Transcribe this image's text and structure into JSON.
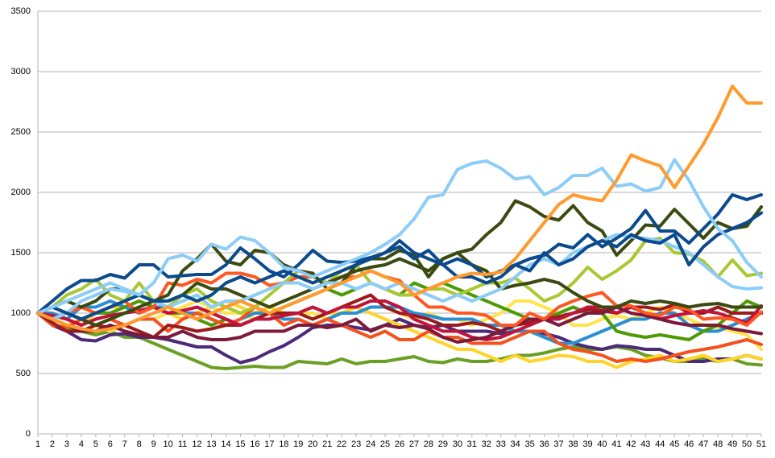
{
  "chart_data": {
    "type": "line",
    "grid": true,
    "categories": [
      "1",
      "2",
      "3",
      "4",
      "5",
      "6",
      "7",
      "8",
      "9",
      "10",
      "11",
      "12",
      "13",
      "14",
      "15",
      "16",
      "17",
      "18",
      "19",
      "20",
      "21",
      "22",
      "23",
      "24",
      "25",
      "26",
      "27",
      "28",
      "29",
      "30",
      "31",
      "32",
      "33",
      "34",
      "35",
      "36",
      "37",
      "38",
      "39",
      "40",
      "41",
      "42",
      "43",
      "44",
      "45",
      "46",
      "47",
      "48",
      "49",
      "50",
      "51"
    ],
    "ylim": [
      0,
      3500
    ],
    "yticks": [
      0,
      500,
      1000,
      1500,
      2000,
      2500,
      3000,
      3500
    ],
    "series": [
      {
        "color": "#6a9f24",
        "values": [
          1000,
          900,
          880,
          850,
          820,
          850,
          800,
          800,
          750,
          700,
          650,
          600,
          550,
          540,
          550,
          560,
          550,
          550,
          600,
          590,
          580,
          620,
          580,
          600,
          600,
          620,
          640,
          600,
          590,
          620,
          600,
          600,
          620,
          650,
          650,
          670,
          700,
          720,
          700,
          700,
          720,
          700,
          650,
          630,
          600,
          600,
          620,
          600,
          620,
          580,
          570
        ]
      },
      {
        "color": "#4c2a78",
        "values": [
          1000,
          900,
          850,
          780,
          770,
          820,
          830,
          800,
          800,
          780,
          750,
          720,
          720,
          650,
          590,
          620,
          680,
          730,
          800,
          880,
          900,
          900,
          880,
          860,
          900,
          950,
          900,
          880,
          900,
          850,
          850,
          850,
          830,
          850,
          850,
          830,
          800,
          750,
          720,
          700,
          730,
          720,
          700,
          700,
          650,
          600,
          600,
          620,
          620,
          650,
          620
        ]
      },
      {
        "color": "#ffd42a",
        "values": [
          1000,
          1000,
          950,
          900,
          1000,
          1050,
          1050,
          1100,
          1050,
          1000,
          950,
          1000,
          1050,
          1100,
          1050,
          1000,
          1050,
          1000,
          1000,
          950,
          1000,
          1000,
          1050,
          1000,
          950,
          900,
          850,
          800,
          750,
          700,
          700,
          650,
          600,
          650,
          600,
          620,
          650,
          640,
          600,
          600,
          550,
          600,
          620,
          650,
          600,
          620,
          650,
          600,
          620,
          650,
          620
        ]
      },
      {
        "color": "#ffe44d",
        "values": [
          1000,
          950,
          900,
          950,
          900,
          850,
          900,
          950,
          950,
          1000,
          1050,
          1100,
          1050,
          1000,
          1000,
          950,
          950,
          1000,
          1000,
          1000,
          950,
          1000,
          1000,
          1050,
          1050,
          1000,
          950,
          1000,
          950,
          950,
          900,
          950,
          1000,
          1100,
          1100,
          1050,
          1000,
          900,
          900,
          950,
          980,
          950,
          1000,
          1050,
          1000,
          950,
          900,
          880,
          850,
          820,
          700
        ]
      },
      {
        "color": "#2a8fd1",
        "values": [
          1000,
          1000,
          950,
          1050,
          1050,
          1100,
          1050,
          1000,
          1050,
          1050,
          1000,
          1000,
          950,
          900,
          950,
          1000,
          1000,
          950,
          950,
          900,
          950,
          1000,
          1000,
          1050,
          1050,
          1050,
          1000,
          980,
          950,
          950,
          950,
          900,
          900,
          850,
          850,
          800,
          750,
          750,
          800,
          850,
          900,
          950,
          950,
          1000,
          1000,
          900,
          850,
          850,
          900,
          950,
          1000
        ]
      },
      {
        "color": "#4e9a06",
        "values": [
          1000,
          1050,
          1000,
          1050,
          1000,
          1000,
          1050,
          1100,
          1050,
          1000,
          1000,
          950,
          900,
          950,
          900,
          950,
          1000,
          1050,
          1100,
          1150,
          1200,
          1150,
          1200,
          1250,
          1200,
          1150,
          1250,
          1200,
          1250,
          1200,
          1150,
          1100,
          1050,
          1000,
          950,
          950,
          1000,
          1050,
          1000,
          1000,
          850,
          820,
          800,
          820,
          800,
          780,
          850,
          900,
          1000,
          1100,
          1050
        ]
      },
      {
        "color": "#f4511e",
        "values": [
          1000,
          900,
          880,
          950,
          900,
          950,
          900,
          950,
          950,
          850,
          950,
          1000,
          950,
          900,
          950,
          1050,
          1000,
          900,
          950,
          900,
          950,
          900,
          850,
          800,
          850,
          780,
          780,
          850,
          800,
          800,
          750,
          750,
          750,
          800,
          850,
          850,
          750,
          700,
          680,
          650,
          600,
          620,
          600,
          620,
          650,
          680,
          700,
          720,
          750,
          780,
          740
        ]
      },
      {
        "color": "#9b1b1b",
        "values": [
          1000,
          920,
          850,
          850,
          900,
          880,
          900,
          850,
          800,
          900,
          880,
          850,
          870,
          900,
          900,
          950,
          1000,
          1000,
          1000,
          950,
          1000,
          1050,
          1100,
          1150,
          1050,
          1000,
          980,
          950,
          900,
          900,
          920,
          900,
          850,
          900,
          920,
          950,
          970,
          1000,
          1030,
          1020,
          1000,
          1050,
          1050,
          1030,
          1070,
          1000,
          1000,
          1050,
          1000,
          1000,
          1000
        ]
      },
      {
        "color": "#c0143c",
        "values": [
          1000,
          980,
          950,
          900,
          950,
          980,
          1000,
          1020,
          1050,
          1000,
          1020,
          1050,
          1000,
          950,
          900,
          950,
          950,
          980,
          1000,
          1050,
          1000,
          1050,
          1050,
          1100,
          1100,
          1050,
          950,
          900,
          850,
          850,
          800,
          780,
          800,
          850,
          900,
          950,
          950,
          1000,
          1050,
          1050,
          1000,
          1050,
          1000,
          950,
          980,
          1000,
          1020,
          1000,
          960,
          920,
          1060
        ]
      },
      {
        "color": "#7b1a3a",
        "values": [
          1000,
          950,
          900,
          850,
          850,
          900,
          850,
          820,
          800,
          800,
          850,
          800,
          780,
          780,
          800,
          850,
          850,
          850,
          900,
          900,
          880,
          900,
          950,
          850,
          900,
          880,
          900,
          870,
          800,
          760,
          780,
          800,
          850,
          900,
          950,
          950,
          900,
          950,
          1000,
          1000,
          1050,
          1000,
          980,
          950,
          920,
          900,
          900,
          900,
          870,
          850,
          830
        ]
      },
      {
        "color": "#ff5722",
        "values": [
          1000,
          950,
          1000,
          1050,
          1000,
          1050,
          1100,
          1000,
          1050,
          1250,
          1230,
          1280,
          1250,
          1330,
          1330,
          1300,
          1230,
          1250,
          1300,
          1300,
          1250,
          1300,
          1300,
          1350,
          1300,
          1270,
          1150,
          1050,
          1050,
          1000,
          1000,
          980,
          900,
          900,
          1000,
          950,
          1050,
          1100,
          1140,
          1170,
          1060,
          1060,
          1000,
          980,
          1050,
          1030,
          950,
          960,
          950,
          900,
          1010
        ]
      },
      {
        "color": "#a8c832",
        "values": [
          1000,
          1050,
          1150,
          1200,
          1280,
          1150,
          1100,
          1250,
          1100,
          1050,
          1150,
          1200,
          1100,
          1050,
          1000,
          1050,
          1150,
          1250,
          1350,
          1300,
          1250,
          1350,
          1400,
          1250,
          1200,
          1150,
          1150,
          1200,
          1200,
          1150,
          1200,
          1250,
          1250,
          1290,
          1200,
          1100,
          1150,
          1250,
          1380,
          1280,
          1350,
          1440,
          1600,
          1620,
          1500,
          1490,
          1430,
          1300,
          1440,
          1310,
          1330
        ]
      },
      {
        "color": "#3a4a10",
        "values": [
          1000,
          1050,
          1100,
          1050,
          1100,
          1200,
          1200,
          1150,
          1100,
          1150,
          1350,
          1450,
          1570,
          1430,
          1400,
          1520,
          1500,
          1400,
          1350,
          1330,
          1200,
          1250,
          1400,
          1450,
          1450,
          1520,
          1480,
          1300,
          1450,
          1500,
          1400,
          1350,
          1200,
          1230,
          1250,
          1280,
          1250,
          1170,
          1100,
          1050,
          1050,
          1100,
          1080,
          1100,
          1080,
          1050,
          1070,
          1080,
          1050,
          1050,
          1050
        ]
      },
      {
        "color": "#3a4a10",
        "values": [
          1000,
          950,
          1000,
          950,
          900,
          950,
          1000,
          1050,
          1100,
          1100,
          1150,
          1250,
          1200,
          1200,
          1150,
          1100,
          1050,
          1100,
          1150,
          1200,
          1250,
          1300,
          1350,
          1380,
          1400,
          1450,
          1400,
          1350,
          1450,
          1500,
          1530,
          1650,
          1750,
          1930,
          1880,
          1800,
          1770,
          1890,
          1750,
          1680,
          1480,
          1600,
          1730,
          1720,
          1860,
          1740,
          1620,
          1750,
          1700,
          1720,
          1880
        ]
      },
      {
        "color": "#8ccdf7",
        "values": [
          1000,
          950,
          1000,
          1100,
          1150,
          1200,
          1180,
          1150,
          1100,
          1050,
          1100,
          1150,
          1050,
          1100,
          1100,
          1150,
          1200,
          1250,
          1250,
          1200,
          1250,
          1250,
          1200,
          1250,
          1200,
          1250,
          1200,
          1150,
          1100,
          1150,
          1100,
          1150,
          1200,
          1300,
          1400,
          1450,
          1400,
          1500,
          1550,
          1600,
          1650,
          1630,
          1620,
          1600,
          1550,
          1500,
          1400,
          1300,
          1220,
          1200,
          1210
        ]
      },
      {
        "color": "#0b4a8c",
        "values": [
          1000,
          1050,
          1000,
          950,
          1000,
          1050,
          1100,
          1150,
          1100,
          1100,
          1150,
          1100,
          1150,
          1250,
          1300,
          1250,
          1300,
          1350,
          1300,
          1250,
          1300,
          1350,
          1400,
          1450,
          1500,
          1600,
          1500,
          1450,
          1400,
          1450,
          1400,
          1300,
          1350,
          1400,
          1350,
          1500,
          1400,
          1450,
          1550,
          1600,
          1550,
          1650,
          1600,
          1580,
          1650,
          1400,
          1550,
          1650,
          1700,
          1750,
          1830
        ]
      },
      {
        "color": "#0b4a8c",
        "values": [
          1000,
          1100,
          1200,
          1270,
          1270,
          1320,
          1290,
          1400,
          1400,
          1300,
          1310,
          1320,
          1320,
          1400,
          1540,
          1450,
          1350,
          1300,
          1400,
          1520,
          1430,
          1420,
          1430,
          1460,
          1500,
          1550,
          1450,
          1520,
          1400,
          1300,
          1300,
          1250,
          1300,
          1400,
          1450,
          1480,
          1570,
          1540,
          1650,
          1550,
          1620,
          1700,
          1850,
          1680,
          1680,
          1580,
          1700,
          1820,
          1980,
          1940,
          1980
        ]
      },
      {
        "color": "#8ccdf7",
        "values": [
          1000,
          1050,
          1100,
          1150,
          1200,
          1250,
          1200,
          1150,
          1250,
          1450,
          1480,
          1430,
          1570,
          1530,
          1630,
          1600,
          1500,
          1380,
          1350,
          1300,
          1350,
          1400,
          1450,
          1500,
          1570,
          1650,
          1780,
          1960,
          1980,
          2190,
          2240,
          2260,
          2200,
          2110,
          2130,
          1980,
          2040,
          2140,
          2140,
          2200,
          2050,
          2070,
          2010,
          2040,
          2270,
          2100,
          1880,
          1700,
          1600,
          1420,
          1300
        ]
      },
      {
        "color": "#ff9a2e",
        "values": [
          1000,
          950,
          900,
          870,
          850,
          870,
          900,
          950,
          1000,
          1050,
          1000,
          950,
          1000,
          1050,
          1100,
          1050,
          1000,
          1050,
          1100,
          1150,
          1200,
          1250,
          1300,
          1350,
          1300,
          1250,
          1150,
          1200,
          1250,
          1300,
          1330,
          1320,
          1340,
          1450,
          1600,
          1750,
          1900,
          1980,
          1950,
          1930,
          2100,
          2310,
          2260,
          2220,
          2040,
          2220,
          2400,
          2620,
          2880,
          2740,
          2740
        ]
      }
    ]
  }
}
